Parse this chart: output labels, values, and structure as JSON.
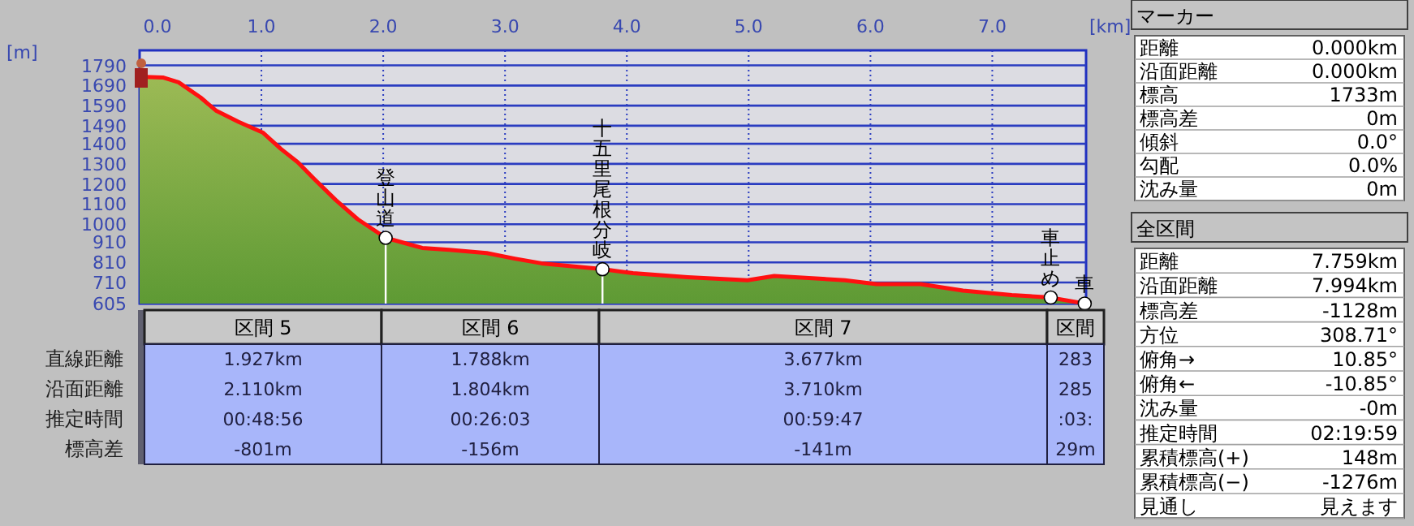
{
  "chart_data": [
    {
      "type": "area",
      "xlabel": "[km]",
      "ylabel": "[m]",
      "grid": true,
      "xlim": [
        0,
        7.77
      ],
      "ylim": [
        605,
        1865
      ],
      "xticks": [
        {
          "value": 0,
          "label": "0.0"
        },
        {
          "value": 1,
          "label": "1.0"
        },
        {
          "value": 2,
          "label": "2.0"
        },
        {
          "value": 3,
          "label": "3.0"
        },
        {
          "value": 4,
          "label": "4.0"
        },
        {
          "value": 5,
          "label": "5.0"
        },
        {
          "value": 6,
          "label": "6.0"
        },
        {
          "value": 7,
          "label": "7.0"
        }
      ],
      "yticks": [
        605,
        710,
        810,
        910,
        1000,
        1100,
        1200,
        1300,
        1400,
        1490,
        1590,
        1690,
        1790
      ],
      "x": [
        0,
        0.19,
        0.32,
        0.5,
        0.63,
        0.81,
        1.01,
        1.16,
        1.3,
        1.43,
        1.61,
        1.79,
        2.02,
        2.32,
        2.54,
        2.85,
        3.08,
        3.3,
        3.8,
        4.05,
        4.5,
        4.99,
        5.21,
        5.79,
        6.05,
        6.41,
        6.76,
        7.16,
        7.48,
        7.759
      ],
      "series": [
        {
          "color": "#5e9a34",
          "values": [
            1733,
            1730,
            1706,
            1631,
            1564,
            1510,
            1456,
            1375,
            1308,
            1227,
            1120,
            1025,
            932,
            882,
            872,
            856,
            829,
            805,
            776,
            756,
            737,
            721,
            742,
            721,
            702,
            702,
            670,
            648,
            635,
            605
          ]
        }
      ],
      "annotations": [
        {
          "text": "登山道",
          "x": 2.02,
          "y": 932
        },
        {
          "text": "十五里尾根分岐",
          "x": 3.8,
          "y": 776
        },
        {
          "text": "車止め",
          "x": 7.48,
          "y": 635
        },
        {
          "text": "車",
          "x": 7.759,
          "y": 605
        }
      ]
    },
    {
      "type": "other",
      "categories": [
        "区間 5",
        "区間 6",
        "区間 7",
        "区間"
      ],
      "y_categories": [
        "直線距離",
        "沿面距離",
        "推定時間",
        "標高差"
      ],
      "cell_labels": [
        [
          "1.927km",
          "1.788km",
          "3.677km",
          "283"
        ],
        [
          "2.110km",
          "1.804km",
          "3.710km",
          "285"
        ],
        [
          "00:48:56",
          "00:26:03",
          "00:59:47",
          ":03:"
        ],
        [
          "-801m",
          "-156m",
          "-141m",
          "29m"
        ]
      ]
    },
    {
      "type": "other",
      "title": "マーカー",
      "y_categories": [
        "距離",
        "沿面距離",
        "標高",
        "標高差",
        "傾斜",
        "勾配",
        "沈み量"
      ],
      "cell_labels": [
        [
          "0.000km"
        ],
        [
          "0.000km"
        ],
        [
          "1733m"
        ],
        [
          "0m"
        ],
        [
          "0.0°"
        ],
        [
          "0.0%"
        ],
        [
          "0m"
        ]
      ]
    },
    {
      "type": "other",
      "title": "全区間",
      "y_categories": [
        "距離",
        "沿面距離",
        "標高差",
        "方位",
        "俯角→",
        "俯角←",
        "沈み量",
        "推定時間",
        "累積標高(+)",
        "累積標高(−)",
        "見通し"
      ],
      "cell_labels": [
        [
          "7.759km"
        ],
        [
          "7.994km"
        ],
        [
          "-1128m"
        ],
        [
          "308.71°"
        ],
        [
          "10.85°"
        ],
        [
          "-10.85°"
        ],
        [
          "-0m"
        ],
        [
          "02:19:59"
        ],
        [
          "148m"
        ],
        [
          "-1276m"
        ],
        [
          "見えます"
        ]
      ]
    }
  ]
}
